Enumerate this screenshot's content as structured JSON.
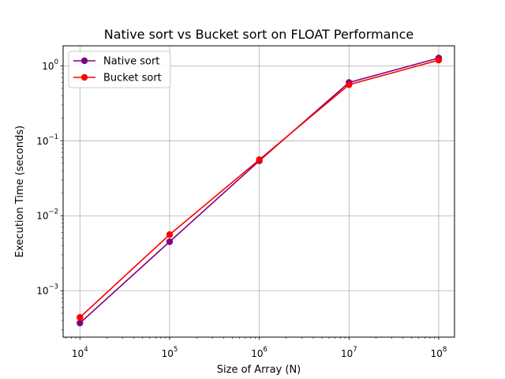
{
  "chart_data": {
    "type": "line",
    "title": "Native sort vs Bucket sort on FLOAT Performance",
    "xlabel": "Size of Array (N)",
    "ylabel": "Execution Time (seconds)",
    "xscale": "log",
    "yscale": "log",
    "xlim": [
      6500,
      150000000
    ],
    "ylim": [
      0.00024,
      1.85
    ],
    "grid": true,
    "legend_position": "top-left",
    "x": [
      10000,
      100000,
      1000000,
      10000000,
      100000000
    ],
    "x_ticks": [
      {
        "value": 10000,
        "base": "10",
        "exp": "4"
      },
      {
        "value": 100000,
        "base": "10",
        "exp": "5"
      },
      {
        "value": 1000000,
        "base": "10",
        "exp": "6"
      },
      {
        "value": 10000000,
        "base": "10",
        "exp": "7"
      },
      {
        "value": 100000000,
        "base": "10",
        "exp": "8"
      }
    ],
    "y_ticks": [
      {
        "value": 0.001,
        "base": "10",
        "exp": "−3"
      },
      {
        "value": 0.01,
        "base": "10",
        "exp": "−2"
      },
      {
        "value": 0.1,
        "base": "10",
        "exp": "−1"
      },
      {
        "value": 1,
        "base": "10",
        "exp": "0"
      }
    ],
    "series": [
      {
        "name": "Native sort",
        "color": "#800080",
        "values": [
          0.00037,
          0.0045,
          0.054,
          0.6,
          1.27
        ]
      },
      {
        "name": "Bucket sort",
        "color": "#ff0000",
        "values": [
          0.00044,
          0.0056,
          0.056,
          0.56,
          1.19
        ]
      }
    ]
  }
}
